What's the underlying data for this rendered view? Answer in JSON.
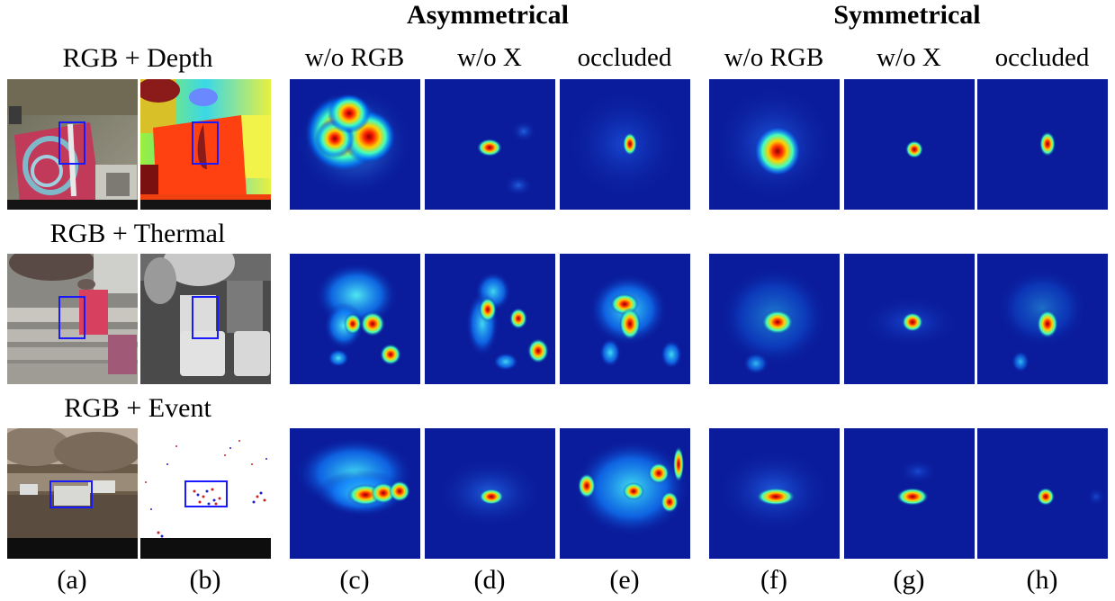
{
  "figure": {
    "group_titles": {
      "asymmetrical": "Asymmetrical",
      "symmetrical": "Symmetrical"
    },
    "column_headers": [
      "w/o RGB",
      "w/o X",
      "occluded",
      "w/o RGB",
      "w/o X",
      "occluded"
    ],
    "rows": [
      {
        "title": "RGB + Depth"
      },
      {
        "title": "RGB + Thermal"
      },
      {
        "title": "RGB + Event"
      }
    ],
    "column_letters": [
      "(a)",
      "(b)",
      "(c)",
      "(d)",
      "(e)",
      "(f)",
      "(g)",
      "(h)"
    ],
    "colors": {
      "heatmap_background": "#0a1c9c",
      "bounding_box": "#1a1aff",
      "colormap": "jet"
    }
  }
}
